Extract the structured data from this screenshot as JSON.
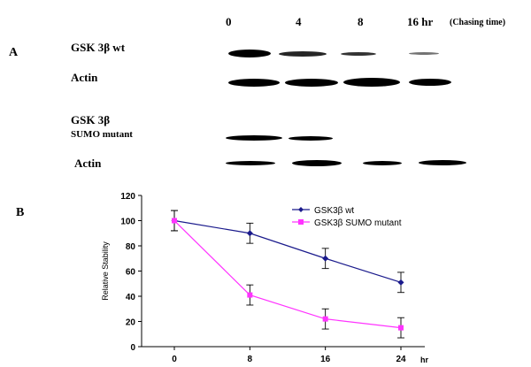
{
  "panel_a": {
    "label": "A",
    "timepoints": [
      "0",
      "4",
      "8",
      "16 hr"
    ],
    "chase_label": "(Chasing time)",
    "rows": [
      {
        "label": "GSK 3β wt",
        "label_line2": ""
      },
      {
        "label": "Actin",
        "label_line2": ""
      },
      {
        "label": "GSK 3β",
        "label_line2": "SUMO mutant"
      },
      {
        "label": "Actin",
        "label_line2": ""
      }
    ],
    "band_intensity": [
      [
        1.0,
        0.75,
        0.45,
        0.25
      ],
      [
        1.0,
        1.0,
        1.0,
        0.85
      ],
      [
        1.0,
        0.8,
        0.0,
        0.0
      ],
      [
        0.75,
        0.85,
        0.7,
        0.75
      ]
    ]
  },
  "panel_b": {
    "label": "B"
  },
  "chart_data": {
    "type": "line",
    "x": [
      0,
      8,
      16,
      24
    ],
    "xunit": "hr",
    "ylabel": "Relative Stability",
    "ylim": [
      0,
      120
    ],
    "yticks": [
      0,
      20,
      40,
      60,
      80,
      100,
      120
    ],
    "xticks": [
      "0",
      "8",
      "16",
      "24"
    ],
    "series": [
      {
        "name": "GSK3β wt",
        "values": [
          100,
          90,
          70,
          51
        ],
        "errors": [
          8,
          8,
          8,
          8
        ],
        "color": "#1a1a8c",
        "marker": "diamond"
      },
      {
        "name": "GSK3β SUMO mutant",
        "values": [
          100,
          41,
          22,
          15
        ],
        "errors": [
          8,
          8,
          8,
          8
        ],
        "color": "#ff33ff",
        "marker": "square"
      }
    ],
    "legend_position": "top-right"
  }
}
